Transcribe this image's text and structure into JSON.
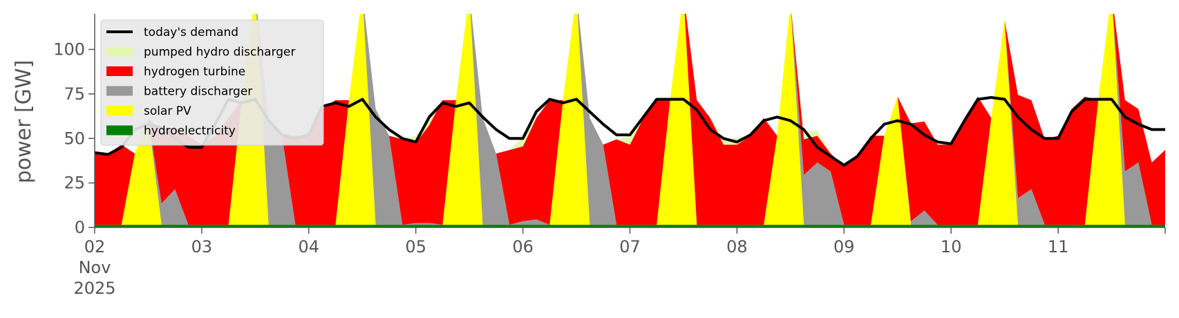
{
  "chart_data": {
    "type": "area",
    "title": "",
    "xlabel": "",
    "ylabel": "power [GW]",
    "x_ticks": [
      "02\nNov\n2025",
      "03",
      "04",
      "05",
      "06",
      "07",
      "08",
      "09",
      "10",
      "11"
    ],
    "x_range": [
      "2025-11-02T00:00",
      "2025-11-12T00:00"
    ],
    "ylim": [
      0,
      120
    ],
    "y_ticks": [
      0,
      25,
      50,
      75,
      100
    ],
    "grid": false,
    "legend_position": "top-left",
    "stacked": true,
    "x": [
      "2025-11-02T00:00",
      "2025-11-02T03:00",
      "2025-11-02T06:00",
      "2025-11-02T09:00",
      "2025-11-02T12:00",
      "2025-11-02T15:00",
      "2025-11-02T18:00",
      "2025-11-02T21:00",
      "2025-11-03T00:00",
      "2025-11-03T03:00",
      "2025-11-03T06:00",
      "2025-11-03T09:00",
      "2025-11-03T12:00",
      "2025-11-03T15:00",
      "2025-11-03T18:00",
      "2025-11-03T21:00",
      "2025-11-04T00:00",
      "2025-11-04T03:00",
      "2025-11-04T06:00",
      "2025-11-04T09:00",
      "2025-11-04T12:00",
      "2025-11-04T15:00",
      "2025-11-04T18:00",
      "2025-11-04T21:00",
      "2025-11-05T00:00",
      "2025-11-05T03:00",
      "2025-11-05T06:00",
      "2025-11-05T09:00",
      "2025-11-05T12:00",
      "2025-11-05T15:00",
      "2025-11-05T18:00",
      "2025-11-05T21:00",
      "2025-11-06T00:00",
      "2025-11-06T03:00",
      "2025-11-06T06:00",
      "2025-11-06T09:00",
      "2025-11-06T12:00",
      "2025-11-06T15:00",
      "2025-11-06T18:00",
      "2025-11-06T21:00",
      "2025-11-07T00:00",
      "2025-11-07T03:00",
      "2025-11-07T06:00",
      "2025-11-07T09:00",
      "2025-11-07T12:00",
      "2025-11-07T15:00",
      "2025-11-07T18:00",
      "2025-11-07T21:00",
      "2025-11-08T00:00",
      "2025-11-08T03:00",
      "2025-11-08T06:00",
      "2025-11-08T09:00",
      "2025-11-08T12:00",
      "2025-11-08T15:00",
      "2025-11-08T18:00",
      "2025-11-08T21:00",
      "2025-11-09T00:00",
      "2025-11-09T03:00",
      "2025-11-09T06:00",
      "2025-11-09T09:00",
      "2025-11-09T12:00",
      "2025-11-09T15:00",
      "2025-11-09T18:00",
      "2025-11-09T21:00",
      "2025-11-10T00:00",
      "2025-11-10T03:00",
      "2025-11-10T06:00",
      "2025-11-10T09:00",
      "2025-11-10T12:00",
      "2025-11-10T15:00",
      "2025-11-10T18:00",
      "2025-11-10T21:00",
      "2025-11-11T00:00",
      "2025-11-11T03:00",
      "2025-11-11T06:00",
      "2025-11-11T09:00",
      "2025-11-11T12:00",
      "2025-11-11T15:00",
      "2025-11-11T18:00",
      "2025-11-11T21:00",
      "2025-11-12T00:00"
    ],
    "series": [
      {
        "name": "hydroelectricity",
        "color": "#008000",
        "values": [
          1.5,
          1.5,
          1.5,
          1.5,
          1.5,
          1.5,
          1.5,
          1.5,
          1.5,
          1.5,
          1.5,
          1.5,
          1.5,
          1.5,
          1.5,
          1.5,
          1.5,
          1.5,
          1.5,
          1.5,
          1.5,
          1.5,
          1.5,
          1.5,
          1.5,
          1.5,
          1.5,
          1.5,
          1.5,
          1.5,
          1.5,
          1.5,
          1.5,
          1.5,
          1.5,
          1.5,
          1.5,
          1.5,
          1.5,
          1.5,
          1.5,
          1.5,
          1.5,
          1.5,
          1.5,
          1.5,
          1.5,
          1.5,
          1.5,
          1.5,
          1.5,
          1.5,
          1.5,
          1.5,
          1.5,
          1.5,
          1.5,
          1.5,
          1.5,
          1.5,
          1.5,
          1.5,
          1.5,
          1.5,
          1.5,
          1.5,
          1.5,
          1.5,
          1.5,
          1.5,
          1.5,
          1.5,
          1.5,
          1.5,
          1.5,
          1.5,
          1.5,
          1.5,
          1.5,
          1.5,
          1.5
        ]
      },
      {
        "name": "solar PV",
        "color": "#ffff00",
        "values": [
          0,
          0,
          0,
          40,
          60,
          0,
          0,
          0,
          0,
          0,
          0,
          70,
          130,
          0,
          0,
          0,
          0,
          0,
          0,
          70,
          130,
          0,
          0,
          0,
          0,
          0,
          0,
          70,
          130,
          0,
          0,
          0,
          0,
          0,
          0,
          70,
          130,
          0,
          0,
          0,
          0,
          0,
          0,
          70,
          130,
          0,
          0,
          0,
          0,
          0,
          0,
          50,
          125,
          0,
          0,
          0,
          0,
          0,
          0,
          50,
          72,
          0,
          0,
          0,
          0,
          0,
          0,
          60,
          115,
          0,
          0,
          0,
          0,
          0,
          0,
          70,
          130,
          0,
          0,
          0,
          0
        ]
      },
      {
        "name": "battery discharger",
        "color": "#999999",
        "values": [
          0,
          0,
          0,
          0,
          0,
          12,
          20,
          0,
          0,
          0,
          0,
          0,
          0,
          58,
          50,
          0,
          0,
          0,
          0,
          0,
          0,
          65,
          50,
          0,
          1,
          1,
          0,
          0,
          0,
          60,
          40,
          0,
          2,
          3,
          0,
          0,
          0,
          60,
          45,
          0,
          0,
          0,
          0,
          0,
          0,
          0,
          0,
          0,
          0,
          0,
          0,
          0,
          0,
          28,
          35,
          30,
          0,
          0,
          0,
          0,
          0,
          2,
          8,
          0,
          0,
          0,
          0,
          0,
          0,
          15,
          20,
          0,
          0,
          0,
          0,
          0,
          0,
          30,
          35,
          0,
          0
        ]
      },
      {
        "name": "hydrogen turbine",
        "color": "#ff0000",
        "values": [
          41,
          40,
          45,
          0,
          0,
          40,
          35,
          50,
          45,
          50,
          60,
          0,
          0,
          0,
          0,
          50,
          50,
          65,
          70,
          0,
          0,
          0,
          0,
          48,
          45,
          55,
          70,
          0,
          0,
          0,
          0,
          42,
          42,
          57,
          70,
          0,
          0,
          0,
          0,
          48,
          45,
          60,
          70,
          0,
          0,
          70,
          60,
          45,
          45,
          50,
          60,
          0,
          0,
          20,
          15,
          10,
          33,
          38,
          50,
          0,
          0,
          55,
          50,
          45,
          45,
          60,
          72,
          0,
          0,
          58,
          50,
          48,
          50,
          65,
          72,
          0,
          0,
          40,
          30,
          35,
          42
        ]
      },
      {
        "name": "pumped hydro discharger",
        "color": "#e1f8ae",
        "values": [
          0,
          0,
          0,
          0,
          0,
          0,
          0,
          0,
          0,
          0,
          0,
          0,
          0,
          0,
          0,
          0,
          0,
          0,
          0,
          0,
          0,
          0,
          0,
          0,
          4,
          3,
          0,
          0,
          0,
          0,
          0,
          0,
          5,
          0,
          0,
          0,
          0,
          0,
          0,
          0,
          5,
          0,
          0,
          0,
          0,
          0,
          0,
          3,
          4,
          0,
          0,
          0,
          0,
          4,
          3,
          0,
          0,
          0,
          0,
          0,
          0,
          0,
          0,
          0,
          0,
          0,
          0,
          0,
          0,
          0,
          0,
          0,
          0,
          0,
          0,
          0,
          0,
          0,
          0,
          0,
          0
        ]
      }
    ],
    "demand": {
      "name": "today's demand",
      "color": "#000000",
      "values": [
        42,
        41,
        45,
        55,
        58,
        56,
        50,
        45,
        45,
        58,
        72,
        70,
        72,
        60,
        52,
        50,
        52,
        68,
        70,
        68,
        72,
        62,
        55,
        50,
        48,
        62,
        70,
        68,
        70,
        62,
        55,
        50,
        50,
        65,
        72,
        70,
        72,
        65,
        58,
        52,
        52,
        62,
        72,
        72,
        72,
        66,
        55,
        50,
        48,
        52,
        60,
        62,
        60,
        55,
        45,
        40,
        35,
        40,
        50,
        58,
        60,
        58,
        52,
        48,
        47,
        60,
        72,
        73,
        72,
        62,
        55,
        50,
        50,
        65,
        72,
        72,
        72,
        62,
        58,
        55,
        55
      ]
    }
  }
}
